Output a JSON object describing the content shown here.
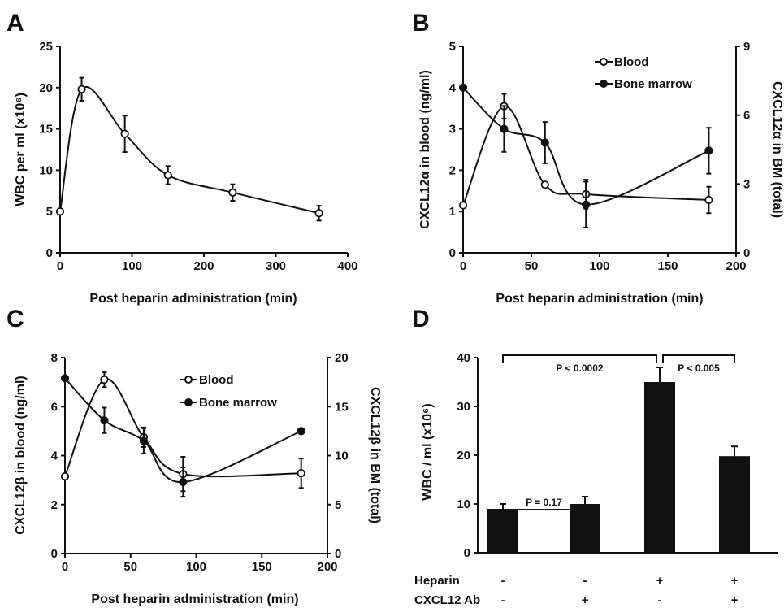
{
  "colors": {
    "ink": "#111111",
    "bar": "#111111",
    "background": "#ffffff"
  },
  "chart_data": [
    {
      "panel": "A",
      "type": "line",
      "xlabel": "Post heparin administration (min)",
      "ylabel": "WBC per ml (x10⁶)",
      "xlim": [
        0,
        400
      ],
      "ylim": [
        0,
        25
      ],
      "xticks": [
        "0",
        "100",
        "200",
        "300",
        "400"
      ],
      "yticks": [
        "0",
        "5",
        "10",
        "15",
        "20",
        "25"
      ],
      "series": [
        {
          "marker": "open-circle",
          "axis": "left",
          "x": [
            0,
            30,
            90,
            150,
            240,
            360
          ],
          "y": [
            5,
            19.8,
            14.4,
            9.4,
            7.3,
            4.8
          ],
          "err": [
            0,
            1.4,
            2.2,
            1.1,
            1.0,
            0.9
          ]
        }
      ]
    },
    {
      "panel": "B",
      "type": "line",
      "xlabel": "Post heparin administration (min)",
      "ylabel": "CXCL12α in blood (ng/ml)",
      "y2label": "CXCL12α in BM (total)",
      "xlim": [
        0,
        200
      ],
      "ylim": [
        0,
        5
      ],
      "y2lim": [
        0,
        9
      ],
      "xticks": [
        "0",
        "50",
        "100",
        "150",
        "200"
      ],
      "yticks": [
        "0",
        "1",
        "2",
        "3",
        "4",
        "5"
      ],
      "y2ticks": [
        "0",
        "3",
        "6",
        "9"
      ],
      "legend_position": "top-right",
      "series": [
        {
          "name": "Blood",
          "marker": "open-circle",
          "axis": "left",
          "x": [
            0,
            30,
            60,
            90,
            180
          ],
          "y": [
            1.15,
            3.55,
            1.65,
            1.42,
            1.28
          ],
          "err": [
            0,
            0.3,
            0,
            0.35,
            0.32
          ]
        },
        {
          "name": "Bone marrow",
          "marker": "filled-circle",
          "axis": "right",
          "x": [
            0,
            30,
            60,
            90,
            180
          ],
          "y": [
            7.2,
            5.4,
            4.8,
            2.1,
            4.45
          ],
          "err": [
            0,
            1.0,
            0.9,
            1.0,
            1.0
          ]
        }
      ]
    },
    {
      "panel": "C",
      "type": "line",
      "xlabel": "Post heparin administration (min)",
      "ylabel": "CXCL12β in blood (ng/ml)",
      "y2label": "CXCL12β in BM (total)",
      "xlim": [
        0,
        200
      ],
      "ylim": [
        0,
        8
      ],
      "y2lim": [
        0,
        20
      ],
      "xticks": [
        "0",
        "50",
        "100",
        "150",
        "200"
      ],
      "yticks": [
        "0",
        "2",
        "4",
        "6",
        "8"
      ],
      "y2ticks": [
        "0",
        "5",
        "10",
        "15",
        "20"
      ],
      "legend_position": "top-right",
      "series": [
        {
          "name": "Blood",
          "marker": "open-circle",
          "axis": "left",
          "x": [
            0,
            30,
            60,
            90,
            180
          ],
          "y": [
            3.15,
            7.1,
            4.75,
            3.25,
            3.28
          ],
          "err": [
            0,
            0.3,
            0.4,
            0.7,
            0.6
          ]
        },
        {
          "name": "Bone marrow",
          "marker": "filled-circle",
          "axis": "right",
          "x": [
            0,
            30,
            60,
            90,
            180
          ],
          "y": [
            17.9,
            13.6,
            11.5,
            7.3,
            12.5
          ],
          "err": [
            0,
            1.3,
            1.3,
            1.5,
            0
          ]
        }
      ]
    },
    {
      "panel": "D",
      "type": "bar",
      "ylabel": "WBC / ml (x10⁶)",
      "ylim": [
        0,
        40
      ],
      "yticks": [
        "0",
        "10",
        "20",
        "30",
        "40"
      ],
      "values": [
        9,
        10,
        35,
        19.8
      ],
      "err": [
        1,
        1.5,
        3,
        2
      ],
      "condition_rows": [
        {
          "label": "Heparin",
          "signs": [
            "-",
            "-",
            "+",
            "+"
          ]
        },
        {
          "label": "CXCL12 Ab",
          "signs": [
            "-",
            "+",
            "-",
            "+"
          ]
        }
      ],
      "annotations": [
        {
          "text": "P = 0.17",
          "from": 0,
          "to": 1
        },
        {
          "text": "P < 0.0002",
          "from": 0,
          "to": 2
        },
        {
          "text": "P < 0.005",
          "from": 2,
          "to": 3
        }
      ]
    }
  ]
}
